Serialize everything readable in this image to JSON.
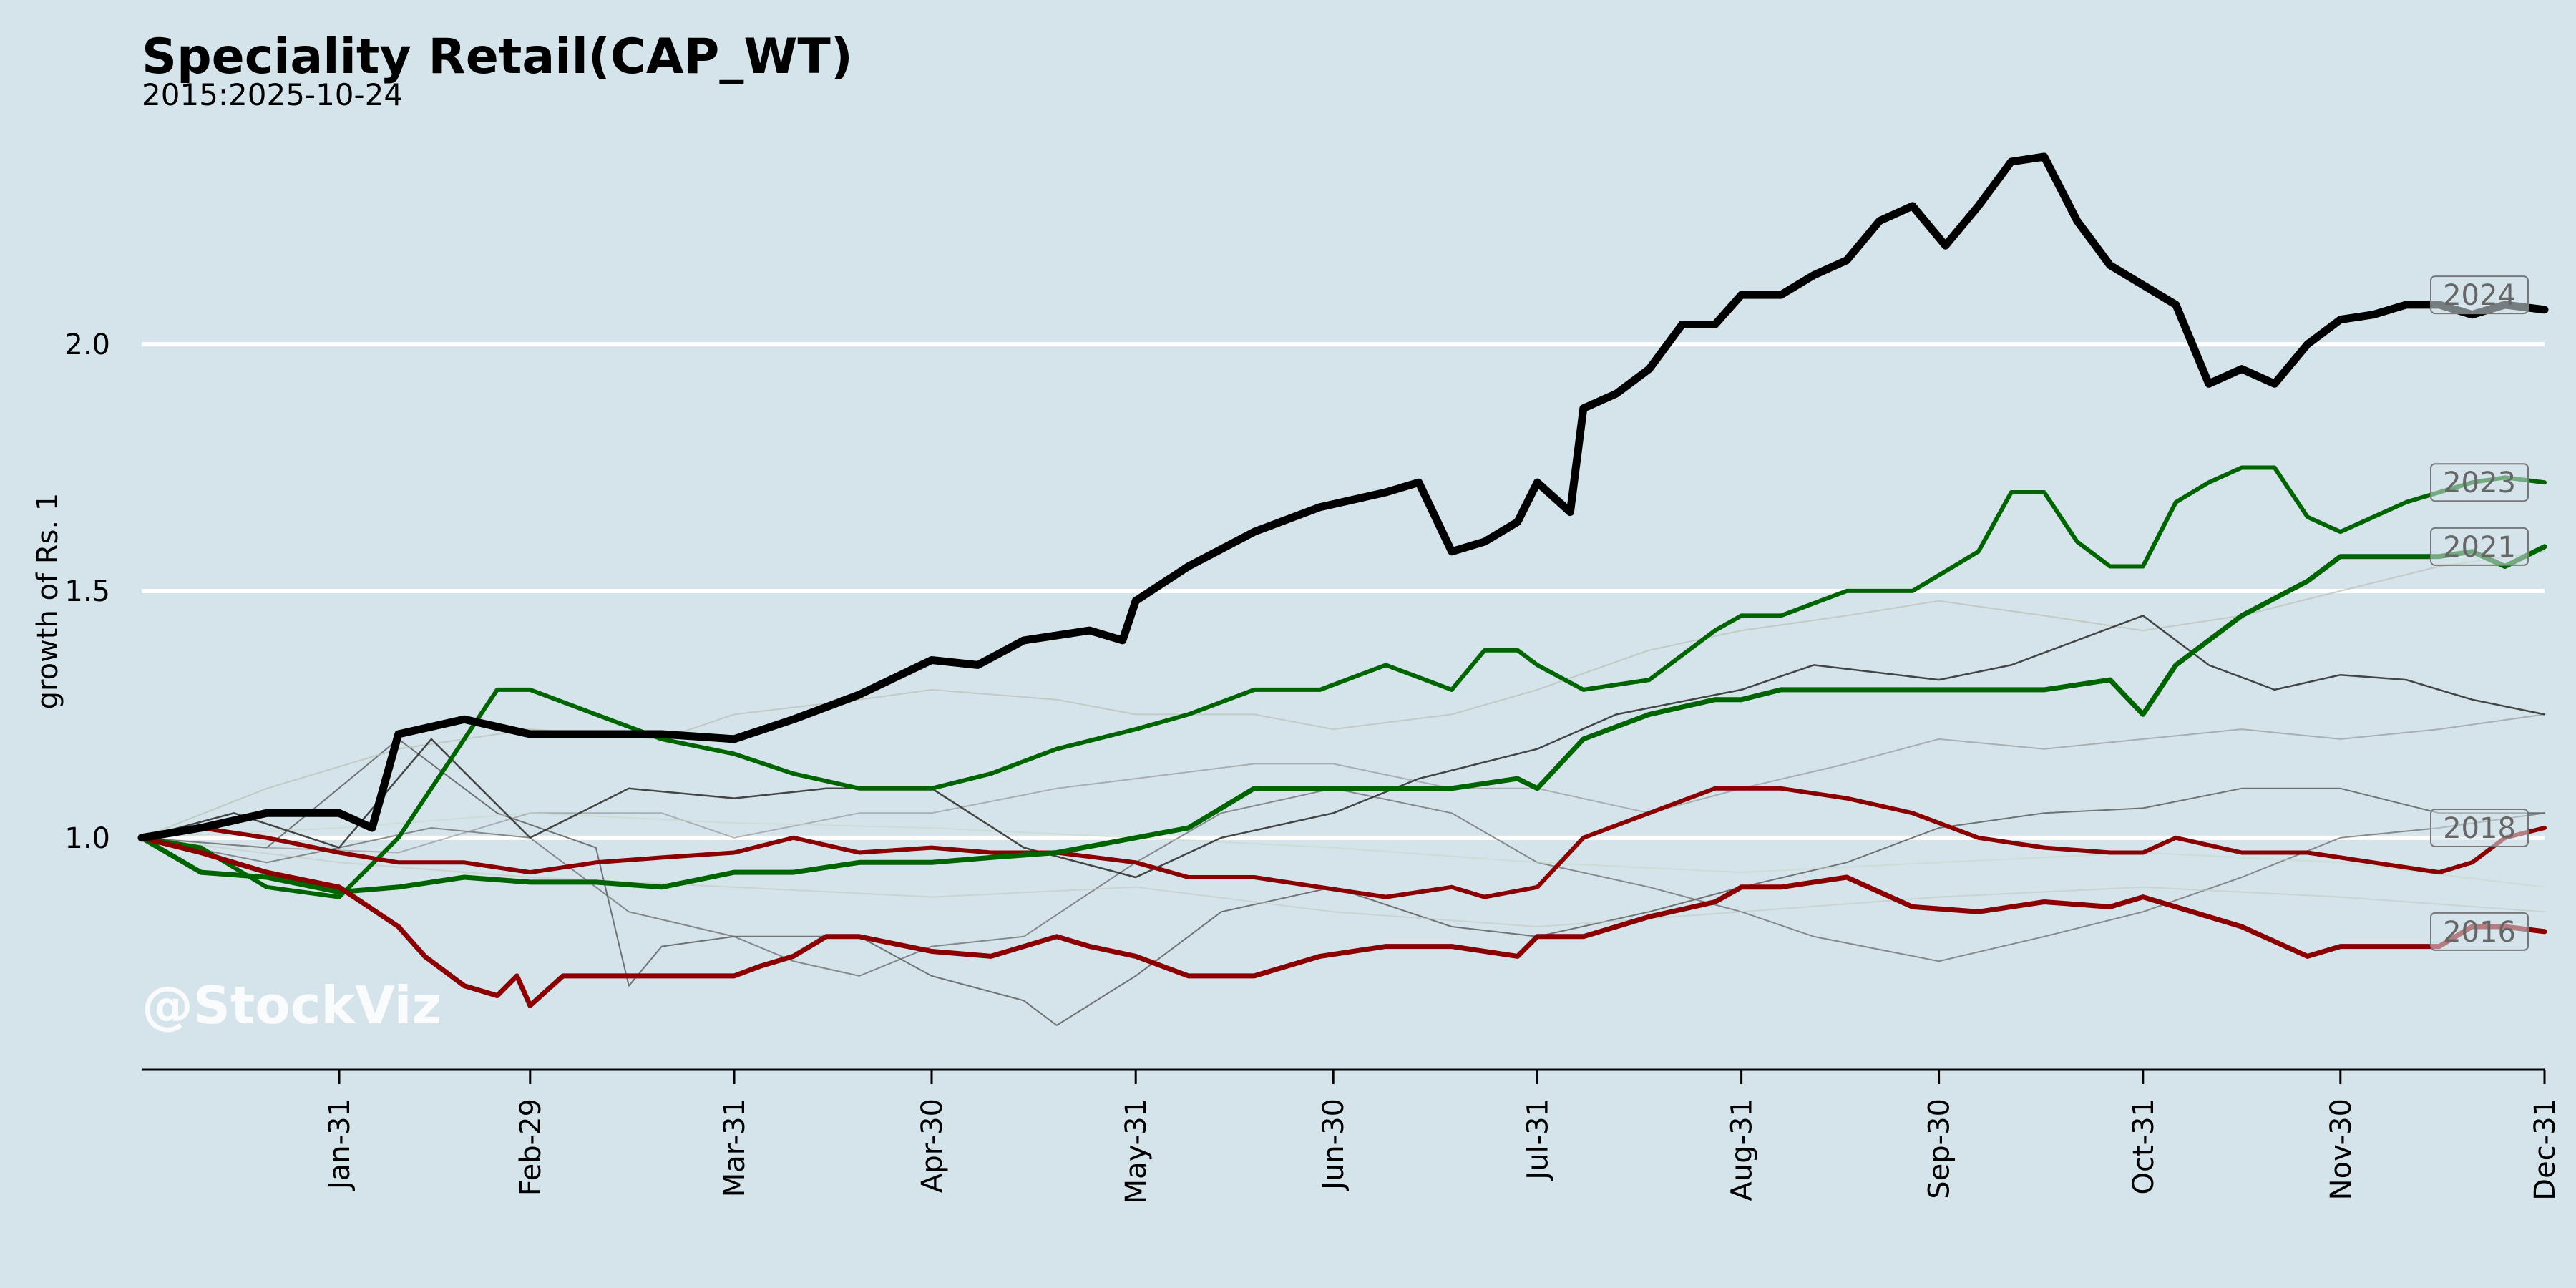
{
  "chart_data": {
    "type": "line",
    "title": "Speciality Retail(CAP_WT)",
    "subtitle": "2015:2025-10-24",
    "xlabel": "",
    "ylabel": "growth of Rs. 1",
    "watermark": "@StockViz",
    "x_ticks": [
      "Jan-31",
      "Feb-29",
      "Mar-31",
      "Apr-30",
      "May-31",
      "Jun-30",
      "Jul-31",
      "Aug-31",
      "Sep-30",
      "Oct-31",
      "Nov-30",
      "Dec-31"
    ],
    "x_tick_days": [
      31,
      60,
      91,
      121,
      152,
      182,
      213,
      244,
      274,
      305,
      335,
      366
    ],
    "xlim": [
      1,
      366
    ],
    "y_ticks": [
      1.0,
      1.5,
      2.0
    ],
    "y_tick_labels": [
      "1.0",
      "1.5",
      "2.0"
    ],
    "ylim": [
      0.53,
      2.48
    ],
    "grid": "horizontal",
    "colors": {
      "background": "#d5e4eb",
      "grid": "#ffffff",
      "positive": "#006400",
      "negative": "#8b0000",
      "best": "#000000"
    },
    "series": [
      {
        "name": "2024",
        "labeled": true,
        "color": "#000000",
        "width": 11,
        "opacity": 1.0,
        "x": [
          1,
          10,
          20,
          31,
          36,
          40,
          50,
          60,
          70,
          80,
          91,
          100,
          110,
          121,
          128,
          135,
          145,
          150,
          152,
          160,
          170,
          180,
          190,
          195,
          200,
          205,
          210,
          213,
          218,
          220,
          225,
          230,
          235,
          240,
          244,
          250,
          255,
          260,
          265,
          270,
          275,
          280,
          285,
          290,
          295,
          300,
          305,
          310,
          315,
          320,
          325,
          330,
          335,
          340,
          345,
          350,
          355,
          360,
          366
        ],
        "y": [
          1.0,
          1.02,
          1.05,
          1.05,
          1.02,
          1.21,
          1.24,
          1.21,
          1.21,
          1.21,
          1.2,
          1.24,
          1.29,
          1.36,
          1.35,
          1.4,
          1.42,
          1.4,
          1.48,
          1.55,
          1.62,
          1.67,
          1.7,
          1.72,
          1.58,
          1.6,
          1.64,
          1.72,
          1.66,
          1.87,
          1.9,
          1.95,
          2.04,
          2.04,
          2.1,
          2.1,
          2.14,
          2.17,
          2.25,
          2.28,
          2.2,
          2.28,
          2.37,
          2.38,
          2.25,
          2.16,
          2.12,
          2.08,
          1.92,
          1.95,
          1.92,
          2.0,
          2.05,
          2.06,
          2.08,
          2.08,
          2.06,
          2.08,
          2.07
        ]
      },
      {
        "name": "2023",
        "labeled": true,
        "color": "#006400",
        "width": 6,
        "opacity": 1.0,
        "x": [
          1,
          10,
          20,
          31,
          40,
          50,
          55,
          60,
          70,
          80,
          91,
          100,
          110,
          121,
          130,
          140,
          152,
          160,
          170,
          180,
          190,
          200,
          205,
          210,
          213,
          220,
          230,
          240,
          244,
          250,
          260,
          270,
          280,
          285,
          290,
          295,
          300,
          305,
          310,
          315,
          320,
          325,
          330,
          335,
          340,
          345,
          350,
          355,
          360,
          366
        ],
        "y": [
          1.0,
          0.98,
          0.9,
          0.88,
          1.0,
          1.2,
          1.3,
          1.3,
          1.25,
          1.2,
          1.17,
          1.13,
          1.1,
          1.1,
          1.13,
          1.18,
          1.22,
          1.25,
          1.3,
          1.3,
          1.35,
          1.3,
          1.38,
          1.38,
          1.35,
          1.3,
          1.32,
          1.42,
          1.45,
          1.45,
          1.5,
          1.5,
          1.58,
          1.7,
          1.7,
          1.6,
          1.55,
          1.55,
          1.68,
          1.72,
          1.75,
          1.75,
          1.65,
          1.62,
          1.65,
          1.68,
          1.7,
          1.72,
          1.73,
          1.72
        ]
      },
      {
        "name": "2021",
        "labeled": true,
        "color": "#006400",
        "width": 7,
        "opacity": 1.0,
        "x": [
          1,
          10,
          20,
          31,
          40,
          50,
          60,
          70,
          80,
          91,
          100,
          110,
          121,
          130,
          140,
          152,
          160,
          170,
          180,
          190,
          200,
          210,
          213,
          220,
          230,
          240,
          244,
          250,
          260,
          270,
          280,
          290,
          300,
          305,
          310,
          320,
          330,
          335,
          340,
          350,
          355,
          360,
          366
        ],
        "y": [
          1.0,
          0.93,
          0.92,
          0.89,
          0.9,
          0.92,
          0.91,
          0.91,
          0.9,
          0.93,
          0.93,
          0.95,
          0.95,
          0.96,
          0.97,
          1.0,
          1.02,
          1.1,
          1.1,
          1.1,
          1.1,
          1.12,
          1.1,
          1.2,
          1.25,
          1.28,
          1.28,
          1.3,
          1.3,
          1.3,
          1.3,
          1.3,
          1.32,
          1.25,
          1.35,
          1.45,
          1.52,
          1.57,
          1.57,
          1.57,
          1.58,
          1.55,
          1.59
        ]
      },
      {
        "name": "2018",
        "labeled": true,
        "color": "#8b0000",
        "width": 6,
        "opacity": 1.0,
        "x": [
          1,
          10,
          20,
          31,
          40,
          50,
          60,
          70,
          80,
          91,
          100,
          110,
          121,
          130,
          140,
          152,
          160,
          170,
          180,
          190,
          200,
          205,
          213,
          220,
          230,
          240,
          244,
          250,
          260,
          270,
          280,
          290,
          300,
          305,
          310,
          320,
          330,
          335,
          340,
          350,
          355,
          360,
          366
        ],
        "y": [
          1.0,
          1.02,
          1.0,
          0.97,
          0.95,
          0.95,
          0.93,
          0.95,
          0.96,
          0.97,
          1.0,
          0.97,
          0.98,
          0.97,
          0.97,
          0.95,
          0.92,
          0.92,
          0.9,
          0.88,
          0.9,
          0.88,
          0.9,
          1.0,
          1.05,
          1.1,
          1.1,
          1.1,
          1.08,
          1.05,
          1.0,
          0.98,
          0.97,
          0.97,
          1.0,
          0.97,
          0.97,
          0.96,
          0.95,
          0.93,
          0.95,
          1.0,
          1.02
        ]
      },
      {
        "name": "2016",
        "labeled": true,
        "color": "#8b0000",
        "width": 7,
        "opacity": 1.0,
        "x": [
          1,
          10,
          20,
          31,
          40,
          44,
          50,
          55,
          58,
          60,
          65,
          70,
          80,
          91,
          95,
          100,
          105,
          110,
          121,
          130,
          140,
          145,
          152,
          160,
          170,
          180,
          190,
          200,
          210,
          213,
          220,
          230,
          240,
          244,
          250,
          260,
          270,
          280,
          290,
          300,
          305,
          310,
          320,
          330,
          335,
          340,
          350,
          355,
          360,
          366
        ],
        "y": [
          1.0,
          0.97,
          0.93,
          0.9,
          0.82,
          0.76,
          0.7,
          0.68,
          0.72,
          0.66,
          0.72,
          0.72,
          0.72,
          0.72,
          0.74,
          0.76,
          0.8,
          0.8,
          0.77,
          0.76,
          0.8,
          0.78,
          0.76,
          0.72,
          0.72,
          0.76,
          0.78,
          0.78,
          0.76,
          0.8,
          0.8,
          0.84,
          0.87,
          0.9,
          0.9,
          0.92,
          0.86,
          0.85,
          0.87,
          0.86,
          0.88,
          0.86,
          0.82,
          0.76,
          0.78,
          0.78,
          0.78,
          0.82,
          0.82,
          0.81
        ]
      },
      {
        "name": "",
        "labeled": false,
        "color": "#333333",
        "width": 2.5,
        "opacity": 0.9,
        "x": [
          1,
          15,
          31,
          45,
          60,
          75,
          91,
          105,
          121,
          135,
          152,
          165,
          182,
          195,
          213,
          225,
          244,
          255,
          274,
          285,
          305,
          315,
          325,
          335,
          345,
          355,
          366
        ],
        "y": [
          1.0,
          1.05,
          0.98,
          1.2,
          1.0,
          1.1,
          1.08,
          1.1,
          1.1,
          0.98,
          0.92,
          1.0,
          1.05,
          1.12,
          1.18,
          1.25,
          1.3,
          1.35,
          1.32,
          1.35,
          1.45,
          1.35,
          1.3,
          1.33,
          1.32,
          1.28,
          1.25
        ]
      },
      {
        "name": "",
        "labeled": false,
        "color": "#555555",
        "width": 2,
        "opacity": 0.8,
        "x": [
          1,
          20,
          40,
          55,
          70,
          75,
          80,
          91,
          110,
          121,
          135,
          140,
          152,
          165,
          182,
          200,
          213,
          230,
          244,
          260,
          274,
          290,
          305,
          320,
          335,
          350,
          366
        ],
        "y": [
          1.0,
          0.98,
          1.2,
          1.05,
          0.98,
          0.7,
          0.78,
          0.8,
          0.8,
          0.72,
          0.67,
          0.62,
          0.72,
          0.85,
          0.9,
          0.82,
          0.8,
          0.85,
          0.9,
          0.95,
          1.02,
          1.05,
          1.06,
          1.1,
          1.1,
          1.05,
          1.05
        ]
      },
      {
        "name": "",
        "labeled": false,
        "color": "#6a6a6a",
        "width": 2,
        "opacity": 0.75,
        "x": [
          1,
          20,
          31,
          45,
          60,
          75,
          91,
          100,
          110,
          121,
          135,
          152,
          165,
          182,
          200,
          213,
          230,
          244,
          255,
          274,
          290,
          305,
          320,
          335,
          350,
          366
        ],
        "y": [
          1.0,
          0.95,
          0.98,
          1.02,
          1.0,
          0.85,
          0.8,
          0.75,
          0.72,
          0.78,
          0.8,
          0.95,
          1.05,
          1.1,
          1.05,
          0.95,
          0.9,
          0.85,
          0.8,
          0.75,
          0.8,
          0.85,
          0.92,
          1.0,
          1.02,
          1.05
        ]
      },
      {
        "name": "",
        "labeled": false,
        "color": "#8a8a8a",
        "width": 2,
        "opacity": 0.6,
        "x": [
          1,
          20,
          40,
          60,
          80,
          91,
          110,
          121,
          140,
          152,
          170,
          182,
          200,
          213,
          230,
          244,
          260,
          274,
          290,
          305,
          320,
          335,
          350,
          366
        ],
        "y": [
          1.0,
          0.98,
          0.97,
          1.05,
          1.05,
          1.0,
          1.05,
          1.05,
          1.1,
          1.12,
          1.15,
          1.15,
          1.1,
          1.1,
          1.05,
          1.1,
          1.15,
          1.2,
          1.18,
          1.2,
          1.22,
          1.2,
          1.22,
          1.25
        ]
      },
      {
        "name": "",
        "labeled": false,
        "color": "#b8bfb2",
        "width": 2,
        "opacity": 0.7,
        "x": [
          1,
          20,
          40,
          60,
          80,
          91,
          110,
          121,
          140,
          152,
          170,
          182,
          200,
          213,
          230,
          244,
          260,
          274,
          290,
          305,
          320,
          335,
          350,
          366
        ],
        "y": [
          1.0,
          1.1,
          1.18,
          1.22,
          1.2,
          1.25,
          1.28,
          1.3,
          1.28,
          1.25,
          1.25,
          1.22,
          1.25,
          1.3,
          1.38,
          1.42,
          1.45,
          1.48,
          1.45,
          1.42,
          1.45,
          1.5,
          1.55,
          1.58
        ]
      },
      {
        "name": "",
        "labeled": false,
        "color": "#c2c9c2",
        "width": 2,
        "opacity": 0.6,
        "x": [
          1,
          31,
          60,
          91,
          121,
          152,
          182,
          213,
          244,
          274,
          305,
          335,
          366
        ],
        "y": [
          1.0,
          0.95,
          0.92,
          0.9,
          0.88,
          0.9,
          0.85,
          0.82,
          0.85,
          0.88,
          0.9,
          0.88,
          0.85
        ]
      },
      {
        "name": "",
        "labeled": false,
        "color": "#c8d8c8",
        "width": 2,
        "opacity": 0.6,
        "x": [
          1,
          31,
          60,
          91,
          121,
          152,
          182,
          213,
          244,
          274,
          305,
          335,
          366
        ],
        "y": [
          1.0,
          1.02,
          1.05,
          1.03,
          1.02,
          1.0,
          0.98,
          0.95,
          0.93,
          0.95,
          0.97,
          0.95,
          0.9
        ]
      }
    ]
  }
}
